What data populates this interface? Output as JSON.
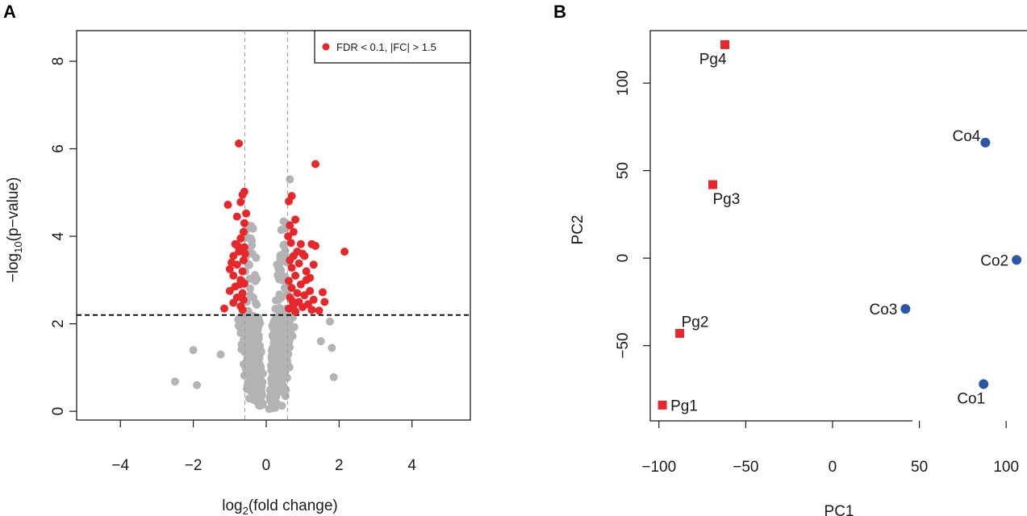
{
  "figure": {
    "panel_a_label": "A",
    "panel_b_label": "B"
  },
  "colors": {
    "significant": "#e8272a",
    "nonsignificant": "#b3b3b5",
    "control": "#2a57a5",
    "treated": "#e8272a",
    "axis": "#1a1a1a"
  },
  "chart_data": [
    {
      "id": "volcano",
      "type": "scatter",
      "title": "",
      "xlabel_prefix": "log",
      "xlabel_sub": "2",
      "xlabel_suffix": "(fold change)",
      "ylabel_prefix": "−log",
      "ylabel_sub": "10",
      "ylabel_suffix": "(p−value)",
      "xlim": [
        -5.2,
        5.6
      ],
      "ylim": [
        -0.2,
        8.7
      ],
      "xticks": [
        -4,
        -2,
        0,
        2,
        4
      ],
      "xtick_labels": [
        "−4",
        "−2",
        "0",
        "2",
        "4"
      ],
      "yticks": [
        0,
        2,
        4,
        6,
        8
      ],
      "ytick_labels": [
        "0",
        "2",
        "4",
        "6",
        "8"
      ],
      "fc_threshold_lines": [
        -0.585,
        0.585
      ],
      "pvalue_threshold_line": 2.2,
      "legend": {
        "label": "FDR < 0.1, |FC| > 1.5",
        "position": "top-right"
      },
      "grid": false,
      "series": [
        {
          "name": "FDR < 0.1, |FC| > 1.5",
          "color_key": "significant",
          "points": [
            [
              -0.75,
              6.12
            ],
            [
              -0.65,
              4.95
            ],
            [
              -0.6,
              5.02
            ],
            [
              -0.7,
              4.78
            ],
            [
              -1.05,
              4.72
            ],
            [
              -0.55,
              4.52
            ],
            [
              -0.8,
              4.45
            ],
            [
              -0.6,
              4.3
            ],
            [
              -0.62,
              4.1
            ],
            [
              -0.7,
              3.95
            ],
            [
              -0.85,
              3.82
            ],
            [
              -0.6,
              3.75
            ],
            [
              -0.75,
              3.65
            ],
            [
              -0.9,
              3.55
            ],
            [
              -0.62,
              3.45
            ],
            [
              -0.8,
              3.35
            ],
            [
              -1.0,
              3.25
            ],
            [
              -0.65,
              3.2
            ],
            [
              -0.9,
              3.1
            ],
            [
              -0.7,
              3.0
            ],
            [
              -0.6,
              2.92
            ],
            [
              -0.85,
              2.85
            ],
            [
              -1.0,
              2.75
            ],
            [
              -0.65,
              2.7
            ],
            [
              -0.8,
              2.6
            ],
            [
              -0.62,
              2.55
            ],
            [
              -0.9,
              2.48
            ],
            [
              -0.7,
              2.4
            ],
            [
              -1.15,
              2.35
            ],
            [
              -0.65,
              2.32
            ],
            [
              -0.78,
              3.78
            ],
            [
              -0.95,
              3.4
            ],
            [
              -0.72,
              2.9
            ],
            [
              -0.58,
              3.6
            ],
            [
              1.35,
              5.65
            ],
            [
              0.7,
              4.92
            ],
            [
              0.62,
              4.8
            ],
            [
              0.8,
              4.38
            ],
            [
              0.65,
              4.25
            ],
            [
              0.75,
              4.1
            ],
            [
              0.6,
              4.0
            ],
            [
              0.68,
              3.85
            ],
            [
              0.95,
              3.82
            ],
            [
              1.25,
              3.82
            ],
            [
              1.35,
              3.78
            ],
            [
              0.85,
              3.65
            ],
            [
              1.0,
              3.6
            ],
            [
              2.15,
              3.65
            ],
            [
              0.75,
              3.55
            ],
            [
              1.05,
              3.55
            ],
            [
              0.65,
              3.45
            ],
            [
              0.9,
              3.38
            ],
            [
              1.3,
              3.35
            ],
            [
              0.7,
              3.28
            ],
            [
              1.1,
              3.2
            ],
            [
              0.8,
              3.1
            ],
            [
              1.2,
              3.05
            ],
            [
              0.62,
              2.98
            ],
            [
              0.95,
              2.9
            ],
            [
              0.7,
              2.82
            ],
            [
              1.2,
              2.75
            ],
            [
              1.55,
              2.72
            ],
            [
              0.85,
              2.7
            ],
            [
              1.05,
              2.65
            ],
            [
              0.65,
              2.6
            ],
            [
              1.3,
              2.55
            ],
            [
              0.9,
              2.5
            ],
            [
              1.6,
              2.5
            ],
            [
              1.15,
              2.45
            ],
            [
              0.75,
              2.42
            ],
            [
              1.0,
              2.38
            ],
            [
              0.62,
              2.35
            ],
            [
              1.25,
              2.32
            ],
            [
              1.45,
              2.3
            ],
            [
              0.8,
              2.28
            ],
            [
              1.1,
              3.0
            ],
            [
              0.72,
              2.52
            ]
          ]
        }
      ]
    },
    {
      "id": "pca",
      "type": "scatter",
      "title": "",
      "xlabel": "PC1",
      "ylabel": "PC2",
      "xlim": [
        -105,
        112
      ],
      "ylim": [
        -93,
        130
      ],
      "xticks": [
        -100,
        -50,
        0,
        50,
        100
      ],
      "xtick_labels": [
        "−100",
        "−50",
        "0",
        "50",
        "100"
      ],
      "yticks": [
        -50,
        0,
        50,
        100
      ],
      "ytick_labels": [
        "−50",
        "0",
        "50",
        "100"
      ],
      "grid": false,
      "series": [
        {
          "name": "Pg",
          "marker": "square",
          "color_key": "treated",
          "points": [
            {
              "label": "Pg1",
              "x": -98,
              "y": -84,
              "label_side": "right"
            },
            {
              "label": "Pg2",
              "x": -88,
              "y": -43,
              "label_side": "above-right"
            },
            {
              "label": "Pg3",
              "x": -69,
              "y": 42,
              "label_side": "below-right"
            },
            {
              "label": "Pg4",
              "x": -62,
              "y": 122,
              "label_side": "below-left"
            }
          ]
        },
        {
          "name": "Co",
          "marker": "circle",
          "color_key": "control",
          "points": [
            {
              "label": "Co1",
              "x": 87,
              "y": -72,
              "label_side": "below-left"
            },
            {
              "label": "Co2",
              "x": 106,
              "y": -1,
              "label_side": "left"
            },
            {
              "label": "Co3",
              "x": 42,
              "y": -29,
              "label_side": "left"
            },
            {
              "label": "Co4",
              "x": 88,
              "y": 66,
              "label_side": "above-left"
            }
          ]
        }
      ]
    }
  ]
}
